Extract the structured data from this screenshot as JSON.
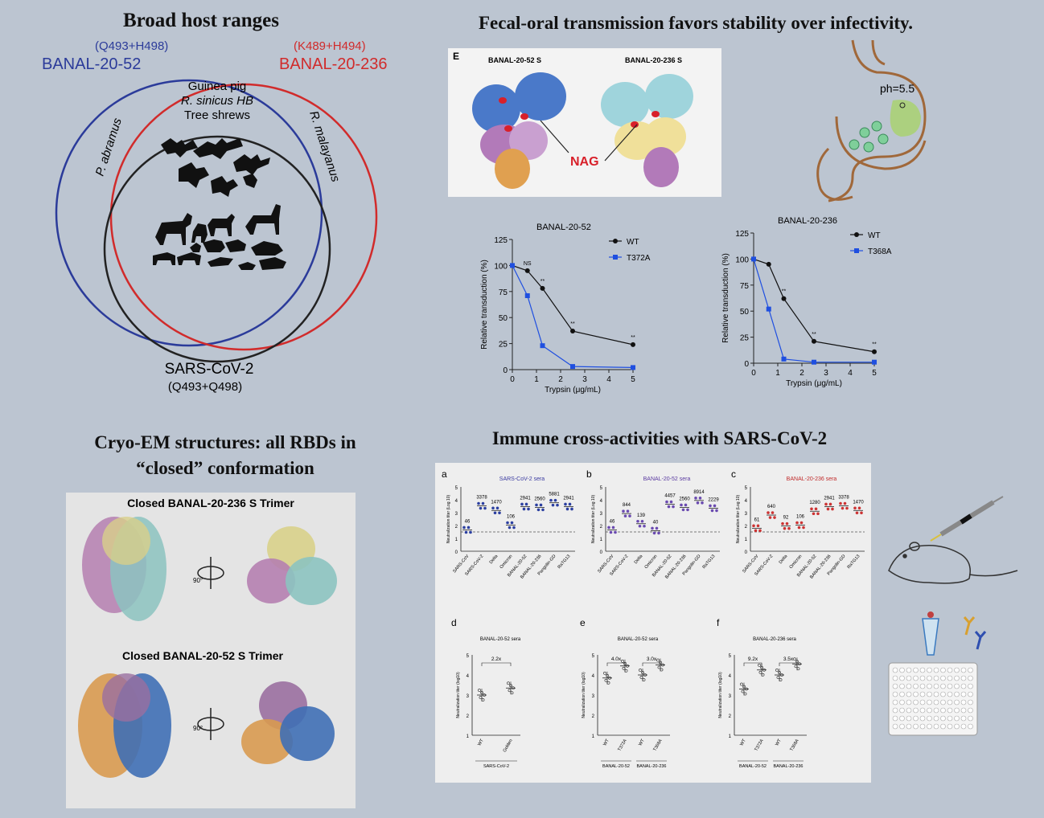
{
  "venn": {
    "title": "Broad host ranges",
    "b52_label": "BANAL-20-52",
    "b52_sub": "(Q493+H498)",
    "b236_label": "BANAL-20-236",
    "b236_sub": "(K489+H494)",
    "sars_label": "SARS-CoV-2",
    "sars_sub": "(Q493+Q498)",
    "hosts": [
      "Guinea pig",
      "R. sinicus HB",
      "Tree shrews"
    ],
    "left_host": "P. abramus",
    "right_host": "R. malayanus",
    "colors": {
      "b52": "#2b3b9a",
      "b236": "#d12b2b",
      "sars": "#222222"
    }
  },
  "fecal": {
    "title": "Fecal-oral transmission favors stability over infectivity.",
    "panel_label": "E",
    "struct_labels": [
      "BANAL-20-52 S",
      "BANAL-20-236 S"
    ],
    "nag_label": "NAG",
    "ph_label": "ph=5.5"
  },
  "chart_data": [
    {
      "type": "line",
      "title": "BANAL-20-52",
      "xlabel": "Trypsin (μg/mL)",
      "ylabel": "Relative transduction (%)",
      "x": [
        0,
        0.625,
        1.25,
        2.5,
        5
      ],
      "xticks": [
        0,
        1,
        2,
        3,
        4,
        5
      ],
      "yticks": [
        0,
        25,
        50,
        75,
        100,
        125
      ],
      "ylim": [
        0,
        125
      ],
      "xlim": [
        0,
        5
      ],
      "series": [
        {
          "name": "WT",
          "values": [
            100,
            95,
            78,
            37,
            24
          ],
          "color": "#111111"
        },
        {
          "name": "T372A",
          "values": [
            100,
            71,
            23,
            3,
            2
          ],
          "color": "#1f4fe0"
        }
      ],
      "annotations": [
        {
          "x": 0.625,
          "text": "NS"
        },
        {
          "x": 1.25,
          "text": "**"
        },
        {
          "x": 2.5,
          "text": "**"
        },
        {
          "x": 5,
          "text": "**"
        }
      ]
    },
    {
      "type": "line",
      "title": "BANAL-20-236",
      "xlabel": "Trypsin (μg/mL)",
      "ylabel": "Relative transduction (%)",
      "x": [
        0,
        0.625,
        1.25,
        2.5,
        5
      ],
      "xticks": [
        0,
        1,
        2,
        3,
        4,
        5
      ],
      "yticks": [
        0,
        25,
        50,
        75,
        100,
        125
      ],
      "ylim": [
        0,
        125
      ],
      "xlim": [
        0,
        5
      ],
      "series": [
        {
          "name": "WT",
          "values": [
            100,
            95,
            62,
            21,
            11
          ],
          "color": "#111111"
        },
        {
          "name": "T368A",
          "values": [
            100,
            52,
            4,
            1,
            1
          ],
          "color": "#1f4fe0"
        }
      ],
      "annotations": [
        {
          "x": 1.25,
          "text": "**"
        },
        {
          "x": 2.5,
          "text": "**"
        },
        {
          "x": 5,
          "text": "**"
        }
      ]
    },
    {
      "type": "scatter",
      "panel": "a",
      "title": "SARS-CoV-2 sera",
      "title_color": "#3a3aa0",
      "ylabel": "Neutralization titer (Log 10)",
      "categories": [
        "SARS-CoV",
        "SARS-CoV-2",
        "Delta",
        "Omicron",
        "BANAL-20-52",
        "BANAL-20-236",
        "Pangolin-GD",
        "RaTG13"
      ],
      "values": [
        1.66,
        3.53,
        3.17,
        2.03,
        3.47,
        3.41,
        3.77,
        3.47
      ],
      "labels": [
        "46",
        "3378",
        "1470",
        "106",
        "2941",
        "2560",
        "5881",
        "2941"
      ],
      "ylim": [
        0,
        5
      ],
      "yticks": [
        0,
        1,
        2,
        3,
        4,
        5
      ],
      "dashed": 1.5,
      "dot_color": "#2b3fa0"
    },
    {
      "type": "scatter",
      "panel": "b",
      "title": "BANAL-20-52 sera",
      "title_color": "#5a3aa0",
      "ylabel": "Neutralization titer (Log 10)",
      "categories": [
        "SARS-CoV",
        "SARS-CoV-2",
        "Delta",
        "Omicron",
        "BANAL-20-52",
        "BANAL-20-236",
        "Pangolin-GD",
        "RaTG13"
      ],
      "values": [
        1.66,
        2.93,
        2.14,
        1.6,
        3.65,
        3.41,
        3.95,
        3.35
      ],
      "labels": [
        "46",
        "844",
        "139",
        "40",
        "4457",
        "2560",
        "8914",
        "2229"
      ],
      "ylim": [
        0,
        5
      ],
      "yticks": [
        0,
        1,
        2,
        3,
        4,
        5
      ],
      "dashed": 1.5,
      "dot_color": "#6a4ab0"
    },
    {
      "type": "scatter",
      "panel": "c",
      "title": "BANAL-20-236 sera",
      "title_color": "#c02a2a",
      "ylabel": "Neutralization titer (Log 10)",
      "categories": [
        "SARS-CoV",
        "SARS-CoV-2",
        "Delta",
        "Omicron",
        "BANAL-20-52",
        "BANAL-20-236",
        "Pangolin-GD",
        "RaTG13"
      ],
      "values": [
        1.79,
        2.81,
        1.96,
        2.03,
        3.11,
        3.47,
        3.53,
        3.17
      ],
      "labels": [
        "61",
        "640",
        "92",
        "106",
        "1280",
        "2941",
        "3378",
        "1470"
      ],
      "ylim": [
        0,
        5
      ],
      "yticks": [
        0,
        1,
        2,
        3,
        4,
        5
      ],
      "dashed": 1.5,
      "dot_color": "#cc3333"
    },
    {
      "type": "scatter",
      "panel": "d",
      "title": "BANAL-20-52 sera",
      "ylabel": "Neutralization titer (log10)",
      "categories": [
        "WT",
        "Golden"
      ],
      "values": [
        3.0,
        3.35
      ],
      "ylim": [
        1,
        5
      ],
      "yticks": [
        1,
        2,
        3,
        4,
        5
      ],
      "fold": [
        {
          "from": 0,
          "to": 1,
          "text": "2.2x"
        }
      ],
      "groups": [
        {
          "from": 0,
          "to": 1,
          "label": "SARS-CoV-2"
        }
      ]
    },
    {
      "type": "scatter",
      "panel": "e",
      "title": "BANAL-20-52 sera",
      "ylabel": "Neutralization titer (log10)",
      "categories": [
        "WT",
        "T372A",
        "WT",
        "T368A"
      ],
      "values": [
        3.85,
        4.45,
        4.0,
        4.5
      ],
      "ylim": [
        1,
        5
      ],
      "yticks": [
        1,
        2,
        3,
        4,
        5
      ],
      "fold": [
        {
          "from": 0,
          "to": 1,
          "text": "4.0x"
        },
        {
          "from": 2,
          "to": 3,
          "text": "3.0x"
        }
      ],
      "groups": [
        {
          "from": 0,
          "to": 1,
          "label": "BANAL-20-52"
        },
        {
          "from": 2,
          "to": 3,
          "label": "BANAL-20-236"
        }
      ]
    },
    {
      "type": "scatter",
      "panel": "f",
      "title": "BANAL-20-236 sera",
      "ylabel": "Neutralization titer (log10)",
      "categories": [
        "WT",
        "T372A",
        "WT",
        "T368A"
      ],
      "values": [
        3.3,
        4.25,
        4.0,
        4.55
      ],
      "ylim": [
        1,
        5
      ],
      "yticks": [
        1,
        2,
        3,
        4,
        5
      ],
      "fold": [
        {
          "from": 0,
          "to": 1,
          "text": "9.2x"
        },
        {
          "from": 2,
          "to": 3,
          "text": "3.5x"
        }
      ],
      "groups": [
        {
          "from": 0,
          "to": 1,
          "label": "BANAL-20-52"
        },
        {
          "from": 2,
          "to": 3,
          "label": "BANAL-20-236"
        }
      ]
    }
  ],
  "cryo": {
    "title_line1": "Cryo-EM structures: all RBDs in",
    "title_line2": "“closed” conformation",
    "label_236": "Closed BANAL-20-236 S Trimer",
    "label_52": "Closed BANAL-20-52 S Trimer",
    "rotation": "90°"
  },
  "immune": {
    "title": "Immune cross-activities with SARS-CoV-2"
  }
}
